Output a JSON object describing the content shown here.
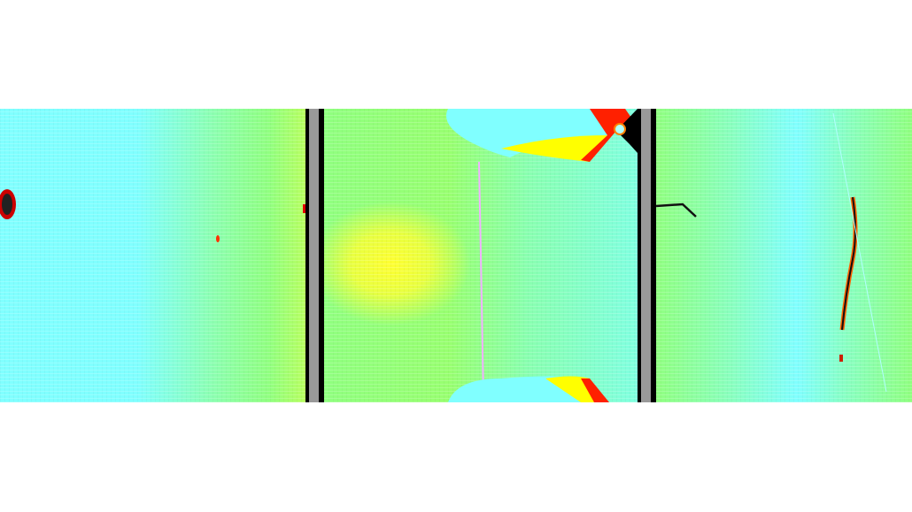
{
  "panels": [
    {
      "name": "left-strain-panel"
    },
    {
      "name": "middle-strain-panel"
    },
    {
      "name": "right-strain-panel"
    }
  ],
  "palette": {
    "low": "#80ffff",
    "mid": "#90ff80",
    "high": "#ffff00",
    "peak": "#ff0000",
    "fracture": "#000000",
    "grip": "#999999"
  }
}
